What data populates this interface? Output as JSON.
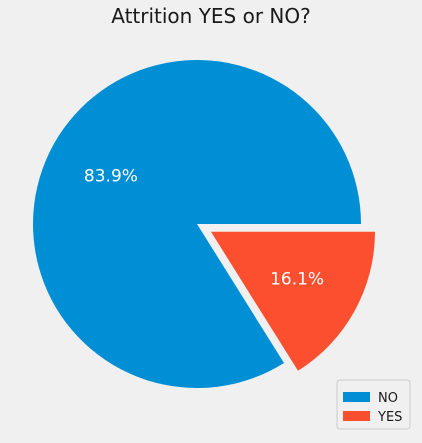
{
  "chart_data": {
    "type": "pie",
    "title": "Attrition YES or NO?",
    "categories": [
      "NO",
      "YES"
    ],
    "values": [
      83.9,
      16.1
    ],
    "labels": [
      "83.9%",
      "16.1%"
    ],
    "colors": [
      "#008fd5",
      "#fc4f30"
    ],
    "exploded": [
      false,
      true
    ],
    "legend": {
      "position": "lower-right",
      "entries": [
        "NO",
        "YES"
      ]
    }
  }
}
